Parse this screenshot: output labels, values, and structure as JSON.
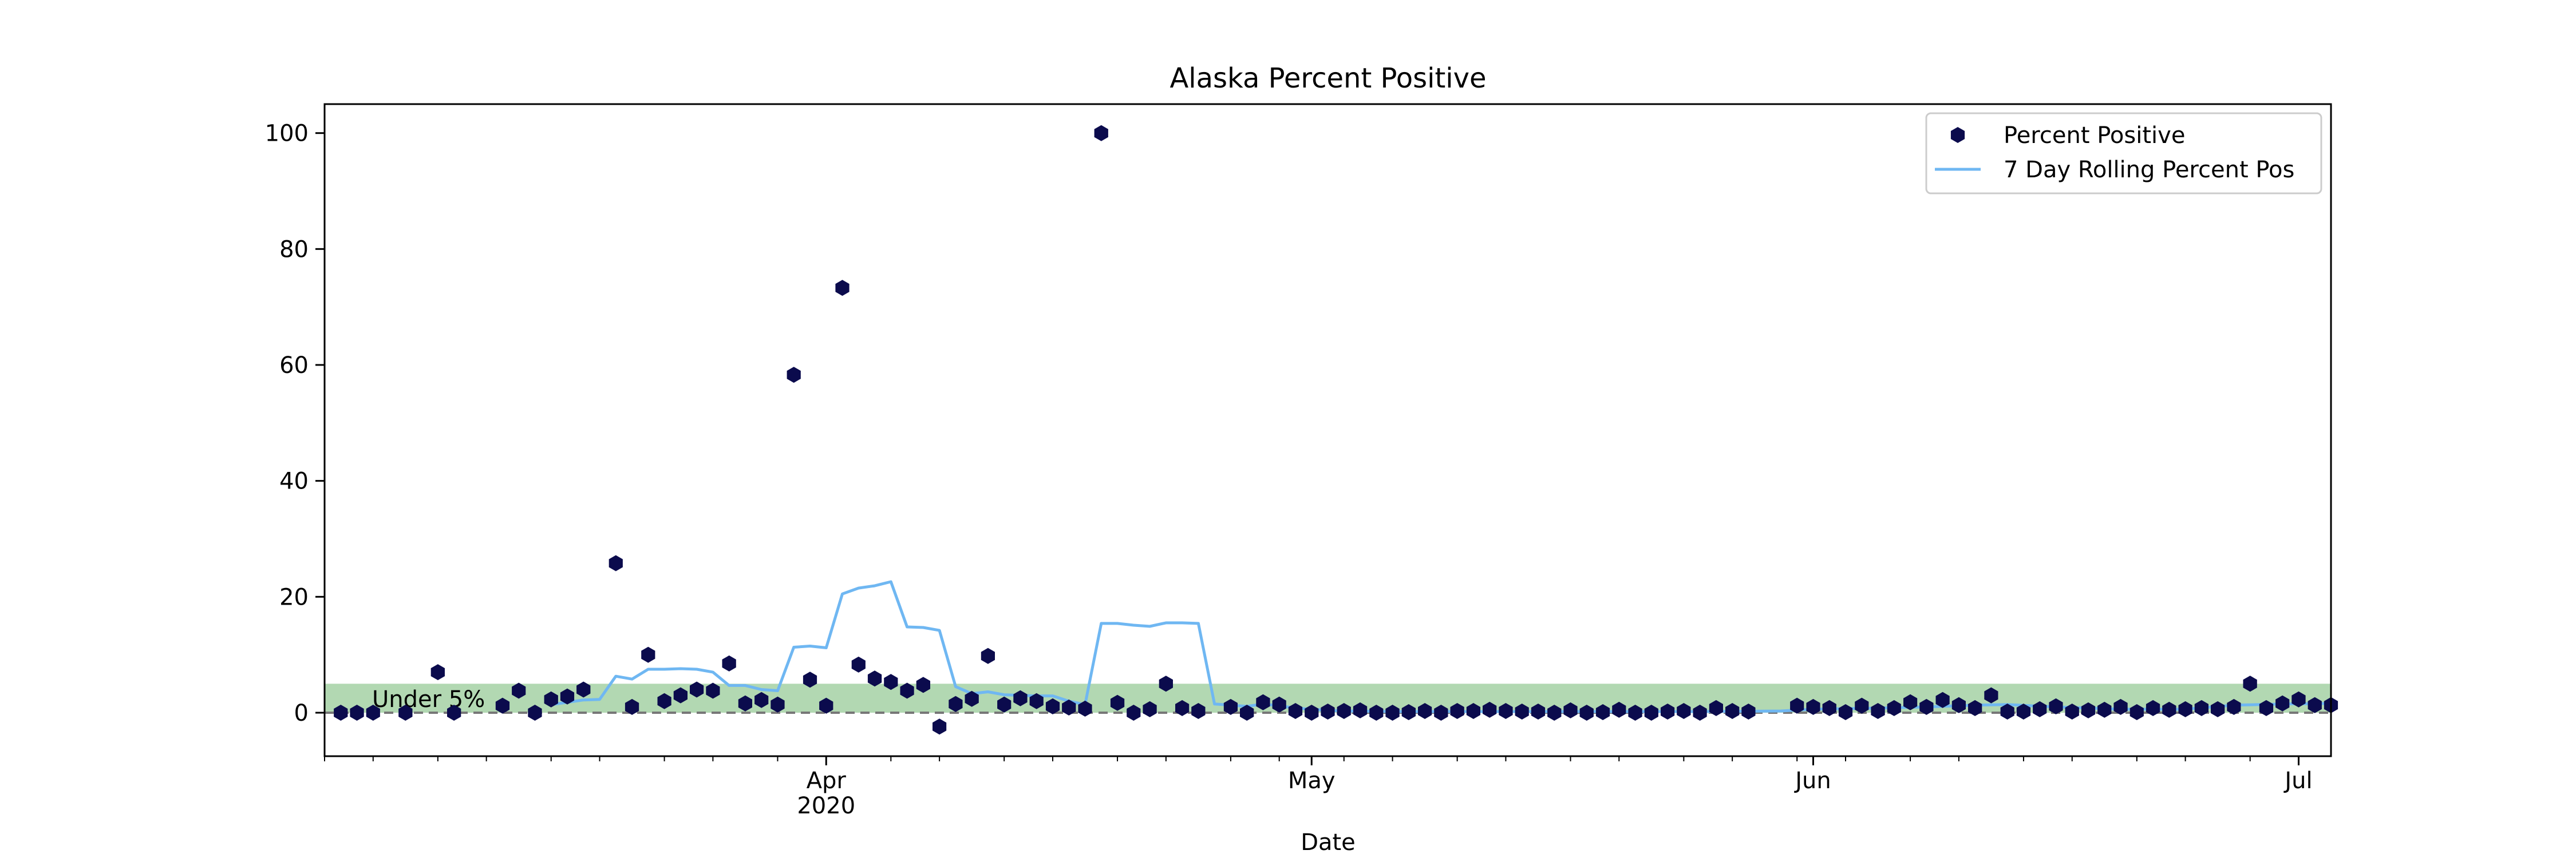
{
  "chart_data": {
    "type": "scatter",
    "title": "Alaska Percent Positive",
    "xlabel": "Date",
    "ylabel": "",
    "x_range": [
      "2020-03-01",
      "2020-07-03"
    ],
    "ylim": [
      -7.5,
      105
    ],
    "y_ticks": [
      0,
      20,
      40,
      60,
      80,
      100
    ],
    "x_major_ticks": [
      {
        "date": "2020-04-01",
        "label": "Apr",
        "sublabel": "2020"
      },
      {
        "date": "2020-05-01",
        "label": "May",
        "sublabel": ""
      },
      {
        "date": "2020-06-01",
        "label": "Jun",
        "sublabel": ""
      },
      {
        "date": "2020-07-01",
        "label": "Jul",
        "sublabel": ""
      }
    ],
    "x_minor_ticks": [
      "2020-03-01",
      "2020-03-04",
      "2020-03-08",
      "2020-03-11",
      "2020-03-15",
      "2020-03-18",
      "2020-03-22",
      "2020-03-25",
      "2020-03-29",
      "2020-04-05",
      "2020-04-08",
      "2020-04-12",
      "2020-04-15",
      "2020-04-19",
      "2020-04-22",
      "2020-04-26",
      "2020-04-29",
      "2020-05-03",
      "2020-05-06",
      "2020-05-10",
      "2020-05-13",
      "2020-05-17",
      "2020-05-20",
      "2020-05-24",
      "2020-05-27",
      "2020-05-31",
      "2020-06-03",
      "2020-06-07",
      "2020-06-10",
      "2020-06-14",
      "2020-06-17",
      "2020-06-21",
      "2020-06-24",
      "2020-06-28"
    ],
    "grid": false,
    "legend_position": "top-right",
    "threshold_band": {
      "y0": 0,
      "y1": 5,
      "label": "Under 5%",
      "color": "#b2d8b2"
    },
    "threshold_line": {
      "y": 0,
      "style": "dashed",
      "color": "#777777"
    },
    "series": [
      {
        "name": "Percent Positive",
        "kind": "scatter",
        "marker": "hexagon",
        "color": "#0b0b4d",
        "points": [
          [
            "2020-03-02",
            0
          ],
          [
            "2020-03-03",
            0
          ],
          [
            "2020-03-04",
            0
          ],
          [
            "2020-03-06",
            0
          ],
          [
            "2020-03-08",
            7
          ],
          [
            "2020-03-09",
            0
          ],
          [
            "2020-03-12",
            1.2
          ],
          [
            "2020-03-13",
            3.8
          ],
          [
            "2020-03-14",
            0
          ],
          [
            "2020-03-15",
            2.3
          ],
          [
            "2020-03-16",
            2.8
          ],
          [
            "2020-03-17",
            4
          ],
          [
            "2020-03-19",
            25.8
          ],
          [
            "2020-03-20",
            1
          ],
          [
            "2020-03-21",
            10
          ],
          [
            "2020-03-22",
            2
          ],
          [
            "2020-03-23",
            3
          ],
          [
            "2020-03-24",
            4
          ],
          [
            "2020-03-25",
            3.8
          ],
          [
            "2020-03-26",
            8.5
          ],
          [
            "2020-03-27",
            1.6
          ],
          [
            "2020-03-28",
            2.2
          ],
          [
            "2020-03-29",
            1.4
          ],
          [
            "2020-03-30",
            58.3
          ],
          [
            "2020-03-31",
            5.7
          ],
          [
            "2020-04-01",
            1.2
          ],
          [
            "2020-04-02",
            73.3
          ],
          [
            "2020-04-03",
            8.3
          ],
          [
            "2020-04-04",
            5.9
          ],
          [
            "2020-04-05",
            5.3
          ],
          [
            "2020-04-06",
            3.8
          ],
          [
            "2020-04-07",
            4.8
          ],
          [
            "2020-04-08",
            -2.4
          ],
          [
            "2020-04-09",
            1.5
          ],
          [
            "2020-04-10",
            2.4
          ],
          [
            "2020-04-11",
            9.8
          ],
          [
            "2020-04-12",
            1.4
          ],
          [
            "2020-04-13",
            2.5
          ],
          [
            "2020-04-14",
            2
          ],
          [
            "2020-04-15",
            1.1
          ],
          [
            "2020-04-16",
            0.9
          ],
          [
            "2020-04-17",
            0.7
          ],
          [
            "2020-04-18",
            100
          ],
          [
            "2020-04-19",
            1.7
          ],
          [
            "2020-04-20",
            0
          ],
          [
            "2020-04-21",
            0.6
          ],
          [
            "2020-04-22",
            5
          ],
          [
            "2020-04-23",
            0.8
          ],
          [
            "2020-04-24",
            0.3
          ],
          [
            "2020-04-26",
            1
          ],
          [
            "2020-04-27",
            0
          ],
          [
            "2020-04-28",
            1.8
          ],
          [
            "2020-04-29",
            1.4
          ],
          [
            "2020-04-30",
            0.3
          ],
          [
            "2020-05-01",
            0
          ],
          [
            "2020-05-02",
            0.2
          ],
          [
            "2020-05-03",
            0.3
          ],
          [
            "2020-05-04",
            0.4
          ],
          [
            "2020-05-05",
            0
          ],
          [
            "2020-05-06",
            0
          ],
          [
            "2020-05-07",
            0.1
          ],
          [
            "2020-05-08",
            0.3
          ],
          [
            "2020-05-09",
            0
          ],
          [
            "2020-05-10",
            0.3
          ],
          [
            "2020-05-11",
            0.3
          ],
          [
            "2020-05-12",
            0.5
          ],
          [
            "2020-05-13",
            0.3
          ],
          [
            "2020-05-14",
            0.2
          ],
          [
            "2020-05-15",
            0.2
          ],
          [
            "2020-05-16",
            0
          ],
          [
            "2020-05-17",
            0.4
          ],
          [
            "2020-05-18",
            0
          ],
          [
            "2020-05-19",
            0.1
          ],
          [
            "2020-05-20",
            0.5
          ],
          [
            "2020-05-21",
            0
          ],
          [
            "2020-05-22",
            0
          ],
          [
            "2020-05-23",
            0.2
          ],
          [
            "2020-05-24",
            0.3
          ],
          [
            "2020-05-25",
            0
          ],
          [
            "2020-05-26",
            0.8
          ],
          [
            "2020-05-27",
            0.3
          ],
          [
            "2020-05-28",
            0.2
          ],
          [
            "2020-05-31",
            1.2
          ],
          [
            "2020-06-01",
            1
          ],
          [
            "2020-06-02",
            0.8
          ],
          [
            "2020-06-03",
            0.1
          ],
          [
            "2020-06-04",
            1.2
          ],
          [
            "2020-06-05",
            0.3
          ],
          [
            "2020-06-06",
            0.8
          ],
          [
            "2020-06-07",
            1.8
          ],
          [
            "2020-06-08",
            1
          ],
          [
            "2020-06-09",
            2.2
          ],
          [
            "2020-06-10",
            1.3
          ],
          [
            "2020-06-11",
            0.8
          ],
          [
            "2020-06-12",
            3
          ],
          [
            "2020-06-13",
            0.2
          ],
          [
            "2020-06-14",
            0.2
          ],
          [
            "2020-06-15",
            0.6
          ],
          [
            "2020-06-16",
            1.1
          ],
          [
            "2020-06-17",
            0.2
          ],
          [
            "2020-06-18",
            0.4
          ],
          [
            "2020-06-19",
            0.5
          ],
          [
            "2020-06-20",
            1
          ],
          [
            "2020-06-21",
            0.1
          ],
          [
            "2020-06-22",
            0.8
          ],
          [
            "2020-06-23",
            0.5
          ],
          [
            "2020-06-24",
            0.6
          ],
          [
            "2020-06-25",
            0.8
          ],
          [
            "2020-06-26",
            0.6
          ],
          [
            "2020-06-27",
            1
          ],
          [
            "2020-06-28",
            5
          ],
          [
            "2020-06-29",
            0.8
          ],
          [
            "2020-06-30",
            1.6
          ],
          [
            "2020-07-01",
            2.3
          ],
          [
            "2020-07-02",
            1.3
          ],
          [
            "2020-07-03",
            1.3
          ]
        ]
      },
      {
        "name": "7 Day Rolling Percent Pos",
        "kind": "line",
        "color": "#6fb7f2",
        "points": [
          [
            "2020-03-15",
            1.4
          ],
          [
            "2020-03-16",
            1.8
          ],
          [
            "2020-03-17",
            2.2
          ],
          [
            "2020-03-18",
            2.3
          ],
          [
            "2020-03-19",
            6.3
          ],
          [
            "2020-03-20",
            5.8
          ],
          [
            "2020-03-21",
            7.5
          ],
          [
            "2020-03-22",
            7.5
          ],
          [
            "2020-03-23",
            7.6
          ],
          [
            "2020-03-24",
            7.5
          ],
          [
            "2020-03-25",
            7
          ],
          [
            "2020-03-26",
            4.7
          ],
          [
            "2020-03-27",
            4.7
          ],
          [
            "2020-03-28",
            4
          ],
          [
            "2020-03-29",
            3.8
          ],
          [
            "2020-03-30",
            11.3
          ],
          [
            "2020-03-31",
            11.5
          ],
          [
            "2020-04-01",
            11.2
          ],
          [
            "2020-04-02",
            20.5
          ],
          [
            "2020-04-03",
            21.5
          ],
          [
            "2020-04-04",
            21.9
          ],
          [
            "2020-04-05",
            22.6
          ],
          [
            "2020-04-06",
            14.8
          ],
          [
            "2020-04-07",
            14.7
          ],
          [
            "2020-04-08",
            14.2
          ],
          [
            "2020-04-09",
            4.5
          ],
          [
            "2020-04-10",
            3.3
          ],
          [
            "2020-04-11",
            3.6
          ],
          [
            "2020-04-12",
            3.1
          ],
          [
            "2020-04-13",
            3
          ],
          [
            "2020-04-14",
            2.9
          ],
          [
            "2020-04-15",
            2.9
          ],
          [
            "2020-04-16",
            2
          ],
          [
            "2020-04-17",
            1.4
          ],
          [
            "2020-04-18",
            15.4
          ],
          [
            "2020-04-19",
            15.4
          ],
          [
            "2020-04-20",
            15.1
          ],
          [
            "2020-04-21",
            14.9
          ],
          [
            "2020-04-22",
            15.5
          ],
          [
            "2020-04-23",
            15.5
          ],
          [
            "2020-04-24",
            15.4
          ],
          [
            "2020-04-25",
            1.5
          ],
          [
            "2020-04-26",
            1.3
          ],
          [
            "2020-04-27",
            1.1
          ],
          [
            "2020-04-28",
            1.5
          ],
          [
            "2020-04-29",
            1.2
          ],
          [
            "2020-04-30",
            0.8
          ],
          [
            "2020-05-01",
            0.6
          ],
          [
            "2020-05-02",
            0.4
          ],
          [
            "2020-05-03",
            0.3
          ],
          [
            "2020-05-06",
            0.2
          ],
          [
            "2020-05-10",
            0.2
          ],
          [
            "2020-05-15",
            0.2
          ],
          [
            "2020-05-20",
            0.2
          ],
          [
            "2020-05-25",
            0.2
          ],
          [
            "2020-05-30",
            0.3
          ],
          [
            "2020-06-01",
            0.6
          ],
          [
            "2020-06-05",
            0.8
          ],
          [
            "2020-06-08",
            1
          ],
          [
            "2020-06-11",
            1.3
          ],
          [
            "2020-06-13",
            1.4
          ],
          [
            "2020-06-16",
            1
          ],
          [
            "2020-06-20",
            0.6
          ],
          [
            "2020-06-24",
            0.6
          ],
          [
            "2020-06-27",
            1.3
          ],
          [
            "2020-06-30",
            1.5
          ],
          [
            "2020-07-03",
            1.6
          ]
        ]
      }
    ]
  }
}
